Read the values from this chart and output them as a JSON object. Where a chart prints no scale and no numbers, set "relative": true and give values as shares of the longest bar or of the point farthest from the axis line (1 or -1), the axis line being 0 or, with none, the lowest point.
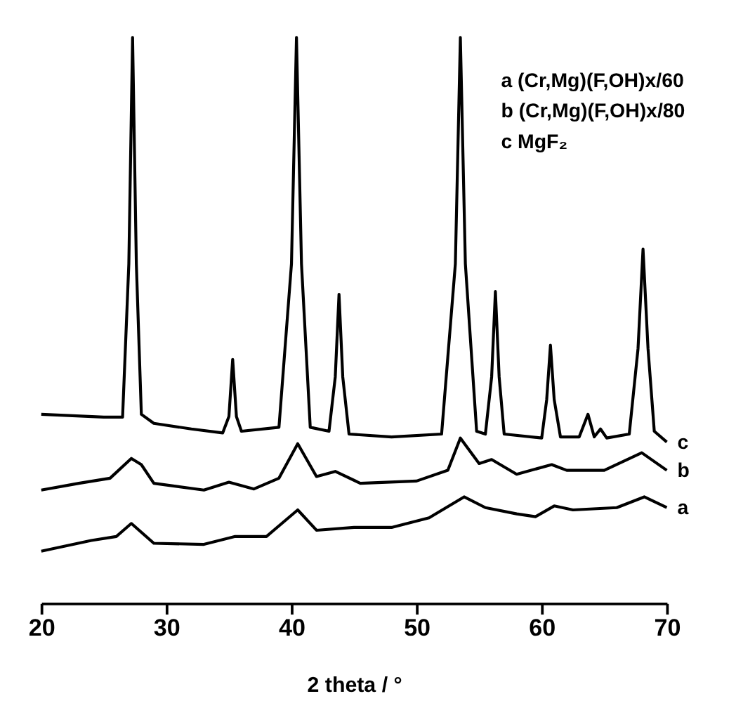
{
  "chart_data": {
    "type": "line",
    "relative": true,
    "xlabel": "2 theta / °",
    "xlim": [
      20,
      70
    ],
    "xticks": [
      20,
      30,
      40,
      50,
      60,
      70
    ],
    "grid": false,
    "line_style": "solid",
    "marker": "none",
    "annotations": [
      "a (Cr,Mg)(F,OH)x/60",
      "b (Cr,Mg)(F,OH)x/80",
      "c MgF₂"
    ],
    "series": [
      {
        "name": "c",
        "color": "#000000",
        "x": [
          20,
          25,
          26.5,
          27.0,
          27.3,
          27.6,
          28,
          29,
          32,
          34.5,
          35.0,
          35.3,
          35.6,
          36,
          39,
          40.0,
          40.4,
          40.8,
          41.5,
          43,
          43.5,
          43.8,
          44.1,
          44.6,
          48,
          52,
          53.1,
          53.5,
          53.9,
          54.8,
          55.5,
          56.0,
          56.3,
          56.6,
          57,
          60,
          60.4,
          60.7,
          61.0,
          61.5,
          63,
          63.7,
          64.2,
          64.7,
          65.2,
          67,
          67.7,
          68.1,
          68.5,
          69,
          70
        ],
        "values": [
          0.334,
          0.329,
          0.329,
          0.6,
          1.0,
          0.6,
          0.334,
          0.318,
          0.308,
          0.301,
          0.33,
          0.431,
          0.33,
          0.304,
          0.311,
          0.6,
          1.0,
          0.6,
          0.311,
          0.304,
          0.4,
          0.546,
          0.4,
          0.299,
          0.294,
          0.299,
          0.6,
          1.0,
          0.6,
          0.304,
          0.299,
          0.4,
          0.551,
          0.4,
          0.299,
          0.292,
          0.36,
          0.456,
          0.36,
          0.294,
          0.294,
          0.334,
          0.294,
          0.308,
          0.292,
          0.299,
          0.45,
          0.626,
          0.45,
          0.304,
          0.285
        ]
      },
      {
        "name": "b",
        "color": "#000000",
        "x": [
          20,
          23,
          25.5,
          27.2,
          28,
          29,
          33,
          35,
          37,
          39,
          40.5,
          42,
          43.5,
          45.5,
          50,
          52.5,
          53.5,
          55,
          56,
          58,
          60.8,
          62,
          65,
          68,
          70
        ],
        "values": [
          0.2,
          0.212,
          0.221,
          0.256,
          0.245,
          0.212,
          0.2,
          0.214,
          0.202,
          0.221,
          0.282,
          0.224,
          0.233,
          0.212,
          0.216,
          0.235,
          0.292,
          0.247,
          0.254,
          0.228,
          0.245,
          0.235,
          0.235,
          0.266,
          0.235
        ]
      },
      {
        "name": "a",
        "color": "#000000",
        "x": [
          20,
          24,
          26,
          27.2,
          29,
          33,
          35.5,
          38,
          40.5,
          42,
          45,
          48,
          51,
          53.8,
          55.5,
          58,
          59.5,
          61,
          62.5,
          66,
          68.2,
          70
        ],
        "values": [
          0.092,
          0.111,
          0.118,
          0.141,
          0.106,
          0.104,
          0.118,
          0.118,
          0.165,
          0.129,
          0.134,
          0.134,
          0.151,
          0.188,
          0.169,
          0.158,
          0.153,
          0.172,
          0.165,
          0.169,
          0.188,
          0.169
        ]
      }
    ]
  }
}
